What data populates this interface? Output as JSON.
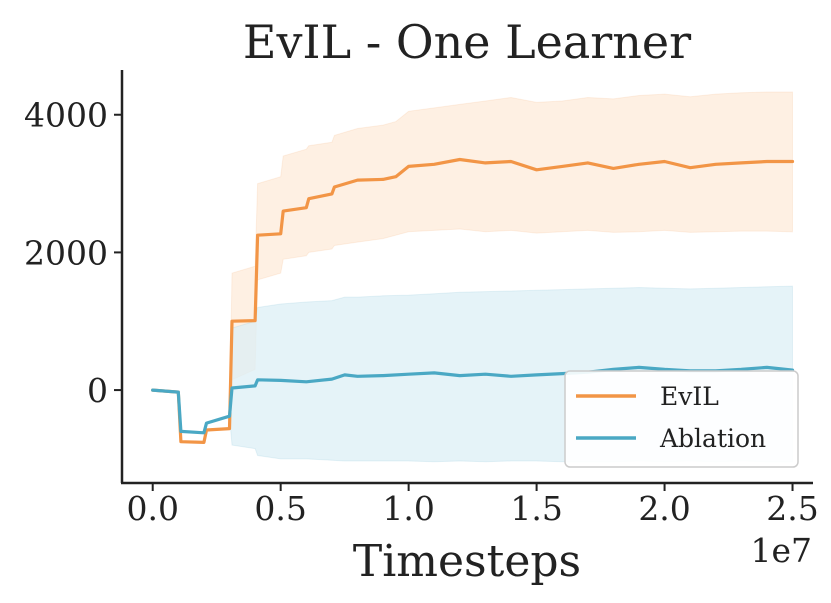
{
  "chart_data": {
    "type": "line",
    "title": "EvIL - One Learner",
    "xlabel": "Timesteps",
    "ylabel": "",
    "x_offset_label": "1e7",
    "xlim": [
      -0.12,
      2.58
    ],
    "ylim": [
      -1350,
      4650
    ],
    "xticks": [
      0.0,
      0.5,
      1.0,
      1.5,
      2.0,
      2.5
    ],
    "xtick_labels": [
      "0.0",
      "0.5",
      "1.0",
      "1.5",
      "2.0",
      "2.5"
    ],
    "yticks": [
      0,
      2000,
      4000
    ],
    "ytick_labels": [
      "0",
      "2000",
      "4000"
    ],
    "grid": false,
    "legend": {
      "position": "bottom-right",
      "entries": [
        "EvIL",
        "Ablation"
      ]
    },
    "series": [
      {
        "name": "EvIL",
        "color": "#f29546",
        "band_color": "#fdebd9",
        "x": [
          0.0,
          0.1,
          0.11,
          0.2,
          0.21,
          0.3,
          0.31,
          0.4,
          0.41,
          0.5,
          0.51,
          0.6,
          0.61,
          0.7,
          0.71,
          0.8,
          0.9,
          0.95,
          1.0,
          1.1,
          1.2,
          1.3,
          1.4,
          1.5,
          1.6,
          1.7,
          1.8,
          1.9,
          2.0,
          2.1,
          2.2,
          2.3,
          2.4,
          2.5
        ],
        "values": [
          0,
          -30,
          -750,
          -760,
          -580,
          -560,
          1000,
          1010,
          2250,
          2270,
          2600,
          2650,
          2780,
          2850,
          2950,
          3050,
          3060,
          3100,
          3250,
          3280,
          3350,
          3300,
          3320,
          3200,
          3250,
          3300,
          3220,
          3280,
          3320,
          3230,
          3280,
          3300,
          3320,
          3320
        ],
        "lower": [
          0,
          -30,
          -750,
          -760,
          -580,
          -560,
          150,
          300,
          1600,
          1700,
          1900,
          1950,
          2000,
          2050,
          2100,
          2150,
          2200,
          2250,
          2300,
          2320,
          2340,
          2300,
          2320,
          2280,
          2300,
          2320,
          2290,
          2300,
          2320,
          2290,
          2300,
          2310,
          2310,
          2300
        ],
        "upper": [
          0,
          -30,
          -750,
          -760,
          -580,
          -560,
          1700,
          1800,
          3000,
          3100,
          3400,
          3500,
          3550,
          3600,
          3700,
          3800,
          3850,
          3900,
          4050,
          4100,
          4150,
          4200,
          4250,
          4180,
          4200,
          4250,
          4230,
          4280,
          4300,
          4260,
          4300,
          4320,
          4330,
          4330
        ]
      },
      {
        "name": "Ablation",
        "color": "#4aa8c4",
        "band_color": "#dceff5",
        "x": [
          0.0,
          0.1,
          0.11,
          0.2,
          0.21,
          0.3,
          0.31,
          0.4,
          0.41,
          0.5,
          0.6,
          0.7,
          0.75,
          0.8,
          0.9,
          1.0,
          1.1,
          1.2,
          1.3,
          1.4,
          1.5,
          1.6,
          1.7,
          1.8,
          1.9,
          2.0,
          2.1,
          2.2,
          2.3,
          2.4,
          2.5
        ],
        "values": [
          0,
          -30,
          -600,
          -620,
          -480,
          -380,
          30,
          60,
          150,
          140,
          120,
          160,
          220,
          200,
          210,
          230,
          250,
          210,
          230,
          200,
          220,
          240,
          260,
          300,
          330,
          300,
          280,
          280,
          300,
          330,
          290
        ],
        "lower": [
          0,
          -30,
          -600,
          -620,
          -480,
          -380,
          -800,
          -850,
          -950,
          -1000,
          -1000,
          -1020,
          -1030,
          -1030,
          -1030,
          -1030,
          -1040,
          -1030,
          -1040,
          -1030,
          -1030,
          -1040,
          -1040,
          -1040,
          -1030,
          -1040,
          -1030,
          -1040,
          -1030,
          -1040,
          -1040
        ],
        "upper": [
          0,
          -30,
          -600,
          -620,
          -480,
          -380,
          900,
          1000,
          1200,
          1250,
          1280,
          1300,
          1350,
          1350,
          1370,
          1380,
          1400,
          1420,
          1430,
          1440,
          1450,
          1460,
          1470,
          1480,
          1490,
          1480,
          1470,
          1480,
          1490,
          1500,
          1510
        ]
      }
    ]
  }
}
